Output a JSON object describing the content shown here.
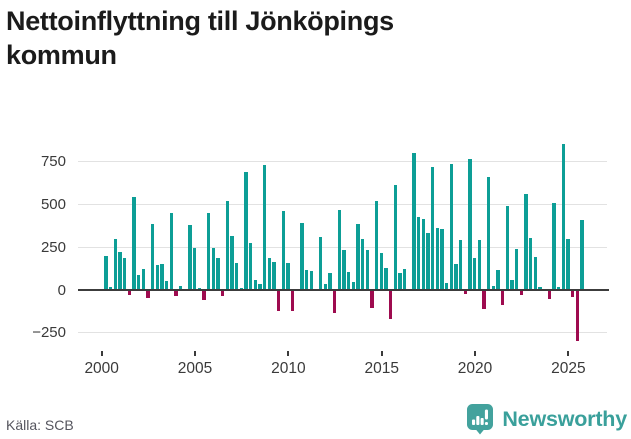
{
  "title": {
    "line1": "Nettoinflyttning till Jönköpings",
    "line2": "kommun"
  },
  "source": {
    "label": "Källa: SCB"
  },
  "brand": {
    "name": "Newsworthy",
    "color": "#3aa09b"
  },
  "colors": {
    "positive": "#0d9e96",
    "negative": "#9e0b4f",
    "zero_line": "#3c3c3c",
    "gridline": "#e2e2e2",
    "axis_text": "#3a3a3a",
    "title_text": "#1b1b1b"
  },
  "chart_data": {
    "type": "bar",
    "title": "Nettoinflyttning till Jönköpings kommun",
    "frequency": "quarterly",
    "start_period": "2000Q1",
    "end_period": "2025Q3",
    "grid": "horizontal",
    "legend": "none",
    "ylim": [
      -320,
      880
    ],
    "y_ticks": [
      750,
      500,
      250,
      0,
      -250
    ],
    "y_tick_labels": [
      "750",
      "500",
      "250",
      "0",
      "−250"
    ],
    "x_ticks": [
      2000,
      2005,
      2010,
      2015,
      2020,
      2025
    ],
    "values": [
      200,
      20,
      300,
      225,
      185,
      -25,
      545,
      85,
      125,
      -40,
      385,
      145,
      155,
      50,
      450,
      -30,
      25,
      5,
      380,
      245,
      10,
      -55,
      450,
      245,
      190,
      -30,
      520,
      315,
      160,
      10,
      690,
      275,
      60,
      35,
      730,
      190,
      165,
      -115,
      465,
      160,
      -120,
      5,
      395,
      120,
      110,
      5,
      310,
      35,
      100,
      -130,
      470,
      235,
      105,
      45,
      385,
      300,
      235,
      -100,
      520,
      215,
      130,
      -165,
      615,
      100,
      125,
      5,
      805,
      425,
      415,
      335,
      720,
      365,
      355,
      40,
      740,
      150,
      295,
      -20,
      770,
      185,
      295,
      -105,
      660,
      25,
      115,
      -80,
      495,
      60,
      240,
      -25,
      565,
      305,
      195,
      20,
      0,
      -45,
      510,
      20,
      855,
      300,
      -35,
      -295,
      410
    ]
  }
}
